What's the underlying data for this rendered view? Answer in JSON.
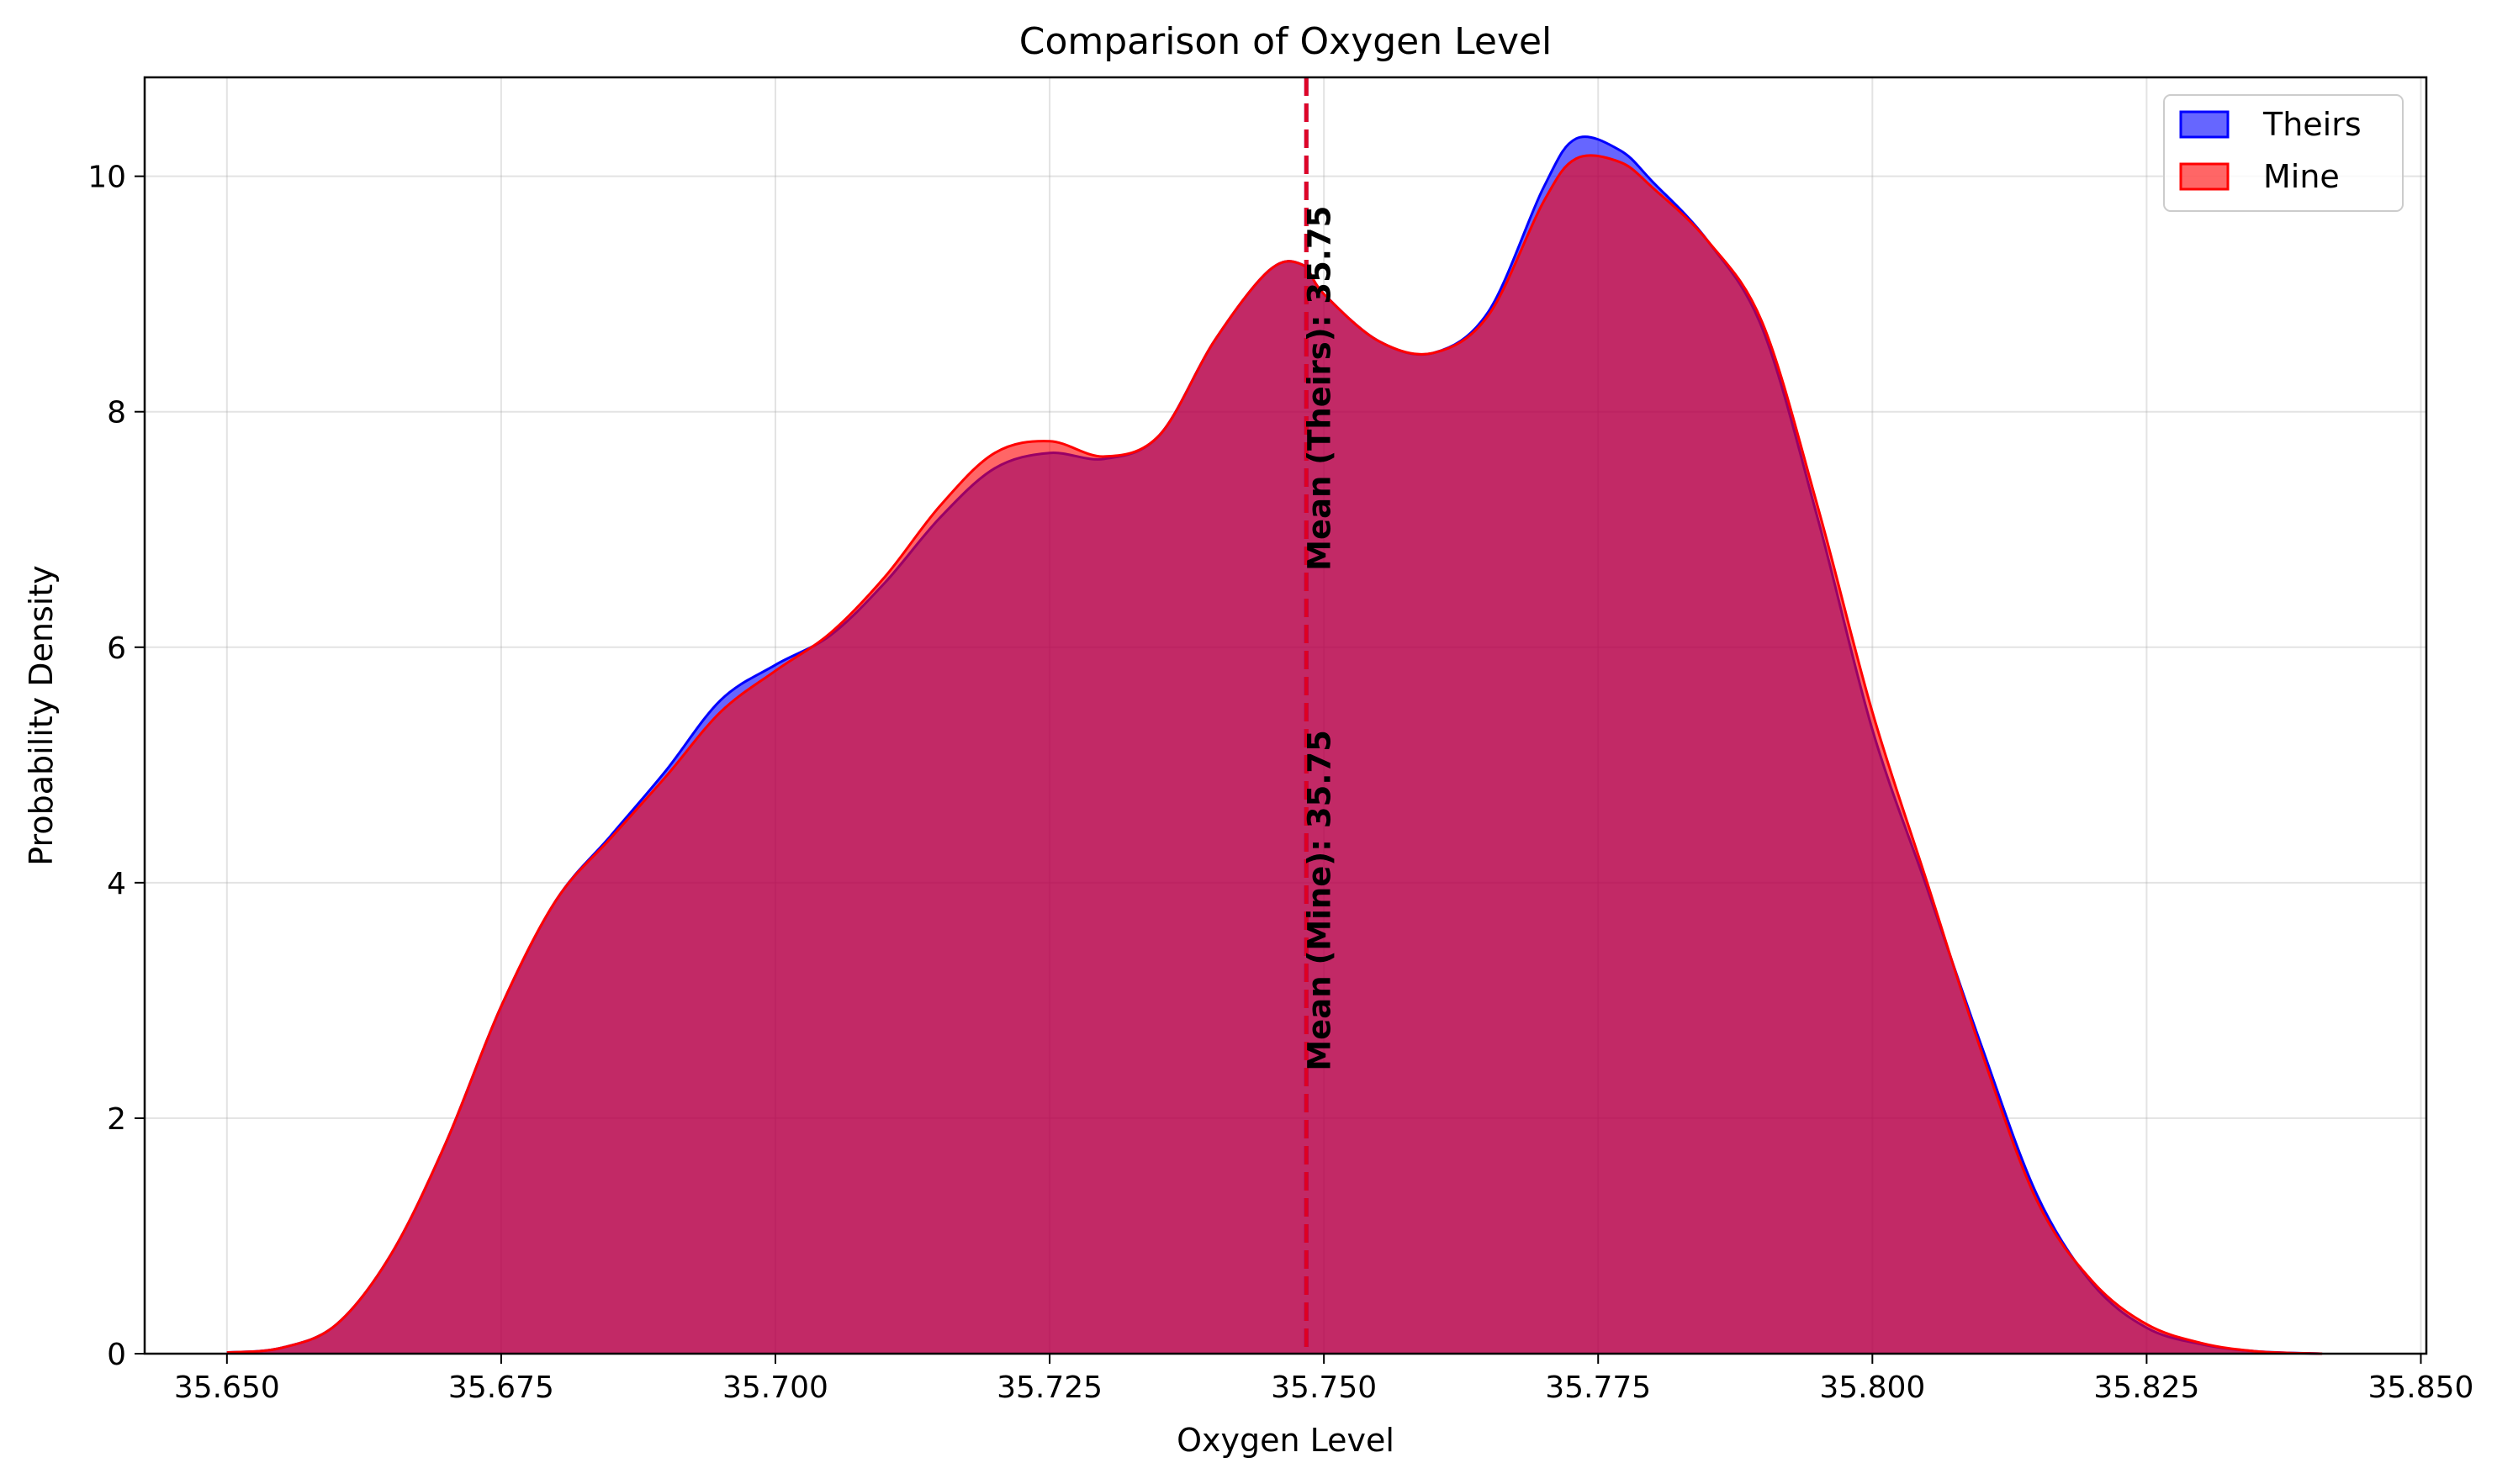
{
  "chart_data": {
    "type": "area",
    "title": "Comparison of Oxygen Level",
    "xlabel": "Oxygen Level",
    "ylabel": "Probability Density",
    "xlim": [
      35.6425,
      35.8505
    ],
    "ylim": [
      0,
      10.84
    ],
    "x_ticks": [
      35.65,
      35.675,
      35.7,
      35.725,
      35.75,
      35.775,
      35.8,
      35.825,
      35.85
    ],
    "x_tick_labels": [
      "35.650",
      "35.675",
      "35.700",
      "35.725",
      "35.750",
      "35.775",
      "35.800",
      "35.825",
      "35.850"
    ],
    "y_ticks": [
      0,
      2,
      4,
      6,
      8,
      10
    ],
    "y_tick_labels": [
      "0",
      "2",
      "4",
      "6",
      "8",
      "10"
    ],
    "grid": true,
    "legend_position": "top-right",
    "series": [
      {
        "name": "Theirs",
        "color": "#0000ff",
        "fill_color": "#0000ff",
        "fill_opacity": 0.6,
        "x": [
          35.65,
          35.655,
          35.66,
          35.665,
          35.67,
          35.675,
          35.68,
          35.685,
          35.69,
          35.695,
          35.7,
          35.705,
          35.71,
          35.715,
          35.72,
          35.725,
          35.73,
          35.735,
          35.74,
          35.745,
          35.748,
          35.75,
          35.755,
          35.76,
          35.765,
          35.77,
          35.773,
          35.777,
          35.78,
          35.785,
          35.79,
          35.795,
          35.8,
          35.805,
          35.81,
          35.815,
          35.82,
          35.825,
          35.83,
          35.835,
          35.841
        ],
        "y": [
          0.01,
          0.05,
          0.25,
          0.85,
          1.8,
          2.95,
          3.85,
          4.4,
          4.95,
          5.55,
          5.85,
          6.1,
          6.55,
          7.1,
          7.52,
          7.65,
          7.6,
          7.8,
          8.6,
          9.2,
          9.25,
          9.0,
          8.6,
          8.5,
          8.85,
          9.9,
          10.32,
          10.22,
          9.95,
          9.45,
          8.7,
          7.1,
          5.3,
          3.95,
          2.6,
          1.35,
          0.6,
          0.22,
          0.08,
          0.02,
          0.0
        ]
      },
      {
        "name": "Mine",
        "color": "#ff0000",
        "fill_color": "#ff0000",
        "fill_opacity": 0.6,
        "x": [
          35.65,
          35.655,
          35.66,
          35.665,
          35.67,
          35.675,
          35.68,
          35.685,
          35.69,
          35.695,
          35.7,
          35.705,
          35.71,
          35.715,
          35.72,
          35.725,
          35.73,
          35.735,
          35.74,
          35.745,
          35.748,
          35.75,
          35.755,
          35.76,
          35.765,
          35.77,
          35.773,
          35.777,
          35.78,
          35.785,
          35.79,
          35.795,
          35.8,
          35.805,
          35.81,
          35.815,
          35.82,
          35.825,
          35.83,
          35.835,
          35.841
        ],
        "y": [
          0.01,
          0.05,
          0.25,
          0.85,
          1.8,
          2.95,
          3.85,
          4.38,
          4.9,
          5.45,
          5.8,
          6.12,
          6.6,
          7.2,
          7.65,
          7.75,
          7.62,
          7.8,
          8.6,
          9.2,
          9.25,
          9.0,
          8.6,
          8.5,
          8.82,
          9.78,
          10.15,
          10.12,
          9.9,
          9.45,
          8.75,
          7.2,
          5.45,
          4.0,
          2.55,
          1.3,
          0.62,
          0.25,
          0.09,
          0.02,
          0.0
        ]
      }
    ],
    "mean_lines": [
      {
        "name": "Theirs",
        "x": 35.7484,
        "color": "#0000ff",
        "label": "Mean (Theirs): 35.75",
        "label_y_center": 8.2
      },
      {
        "name": "Mine",
        "x": 35.7484,
        "color": "#ff0000",
        "label": "Mean (Mine): 35.75",
        "label_y_center": 3.85
      }
    ]
  }
}
